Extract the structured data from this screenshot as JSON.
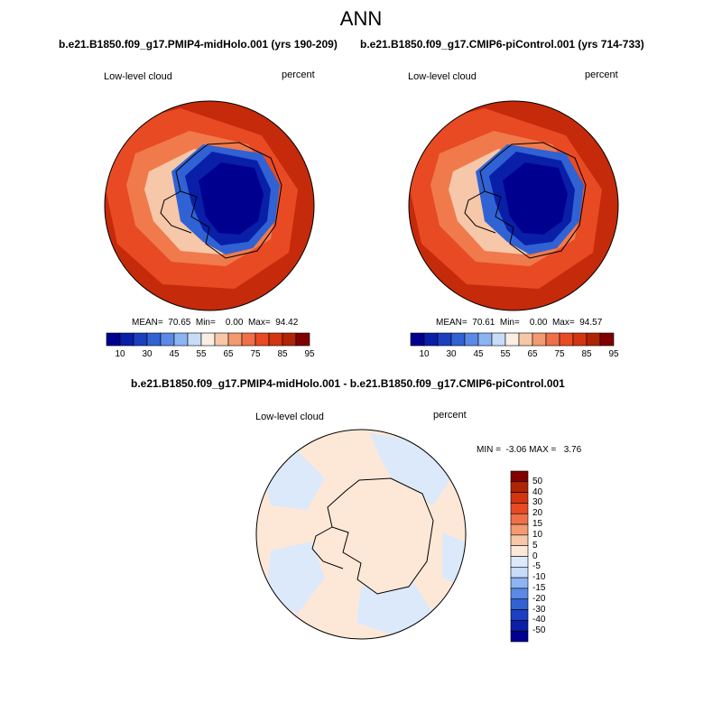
{
  "page_title": "ANN",
  "panels": [
    {
      "title": "b.e21.B1850.f09_g17.PMIP4-midHolo.001 (yrs 190-209)",
      "variable_label": "Low-level cloud",
      "units_label": "percent",
      "stats_text": "MEAN=  70.65  Min=    0.00  Max=  94.42",
      "colorbar_ticks": [
        "10",
        "30",
        "45",
        "55",
        "65",
        "75",
        "85",
        "95"
      ]
    },
    {
      "title": "b.e21.B1850.f09_g17.CMIP6-piControl.001 (yrs 714-733)",
      "variable_label": "Low-level cloud",
      "units_label": "percent",
      "stats_text": "MEAN=  70.61  Min=    0.00  Max=  94.57",
      "colorbar_ticks": [
        "10",
        "30",
        "45",
        "55",
        "65",
        "75",
        "85",
        "95"
      ]
    }
  ],
  "difference_panel": {
    "title": "b.e21.B1850.f09_g17.PMIP4-midHolo.001 - b.e21.B1850.f09_g17.CMIP6-piControl.001",
    "variable_label": "Low-level cloud",
    "units_label": "percent",
    "stats_text": "MIN =  -3.06 MAX =   3.76",
    "colorbar_ticks": [
      "50",
      "40",
      "30",
      "20",
      "15",
      "10",
      "5",
      "0",
      "-5",
      "-10",
      "-15",
      "-20",
      "-30",
      "-40",
      "-50"
    ]
  },
  "colors": {
    "abs_scale": [
      "#00008f",
      "#0a1fa8",
      "#1b3fbf",
      "#3062d4",
      "#5a8ae6",
      "#8db4f2",
      "#c8dcf8",
      "#fbeee4",
      "#f6c7a8",
      "#f39a70",
      "#ef7048",
      "#e84a24",
      "#d2350f",
      "#b02406",
      "#800000"
    ],
    "diff_scale": [
      "#00008f",
      "#0a1fa8",
      "#1b3fbf",
      "#3062d4",
      "#5a8ae6",
      "#8db4f2",
      "#c8dcf8",
      "#dce9fa",
      "#fde8d8",
      "#f6c7a8",
      "#f39a70",
      "#ef7048",
      "#e84a24",
      "#d2350f",
      "#b02406",
      "#800000"
    ]
  }
}
